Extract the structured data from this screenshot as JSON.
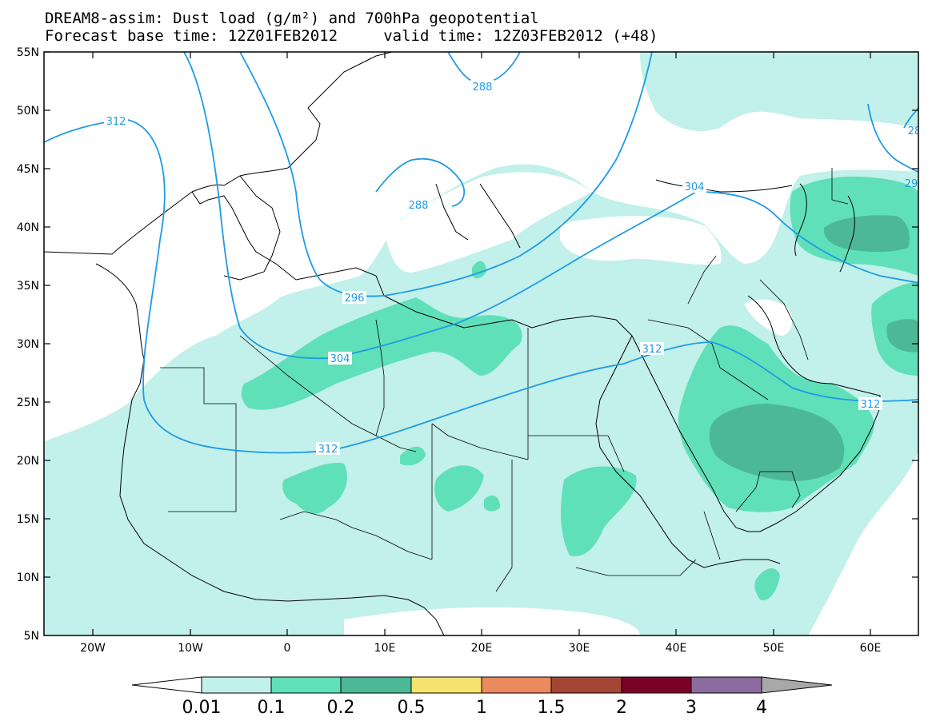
{
  "header": {
    "title_line1": "DREAM8-assim: Dust load (g/m²) and 700hPa geopotential",
    "title_line2": "Forecast base time: 12Z01FEB2012     valid time: 12Z03FEB2012 (+48)"
  },
  "map": {
    "lat_labels": [
      "55N",
      "50N",
      "45N",
      "40N",
      "35N",
      "30N",
      "25N",
      "20N",
      "15N",
      "10N",
      "5N"
    ],
    "lon_labels": [
      "20W",
      "10W",
      "0",
      "10E",
      "20E",
      "30E",
      "40E",
      "50E",
      "60E"
    ],
    "contour_labels": [
      "312",
      "288",
      "288",
      "304",
      "296",
      "304",
      "312",
      "312",
      "312",
      "28",
      "29"
    ],
    "colors": {
      "dust_0_01": "#c2f0ea",
      "dust_0_1": "#5fe0b8",
      "dust_0_2": "#4cb896",
      "contour_line": "#1e9be6",
      "border": "#000000"
    }
  },
  "colorbar": {
    "levels": [
      "0.01",
      "0.1",
      "0.2",
      "0.5",
      "1",
      "1.5",
      "2",
      "3",
      "4"
    ],
    "colors": [
      "#ffffff",
      "#c2f0ea",
      "#5fe0b8",
      "#4cb896",
      "#f6e36f",
      "#ea8a5e",
      "#a34636",
      "#7a0226",
      "#8c6b9e",
      "#a8a8a8"
    ]
  }
}
